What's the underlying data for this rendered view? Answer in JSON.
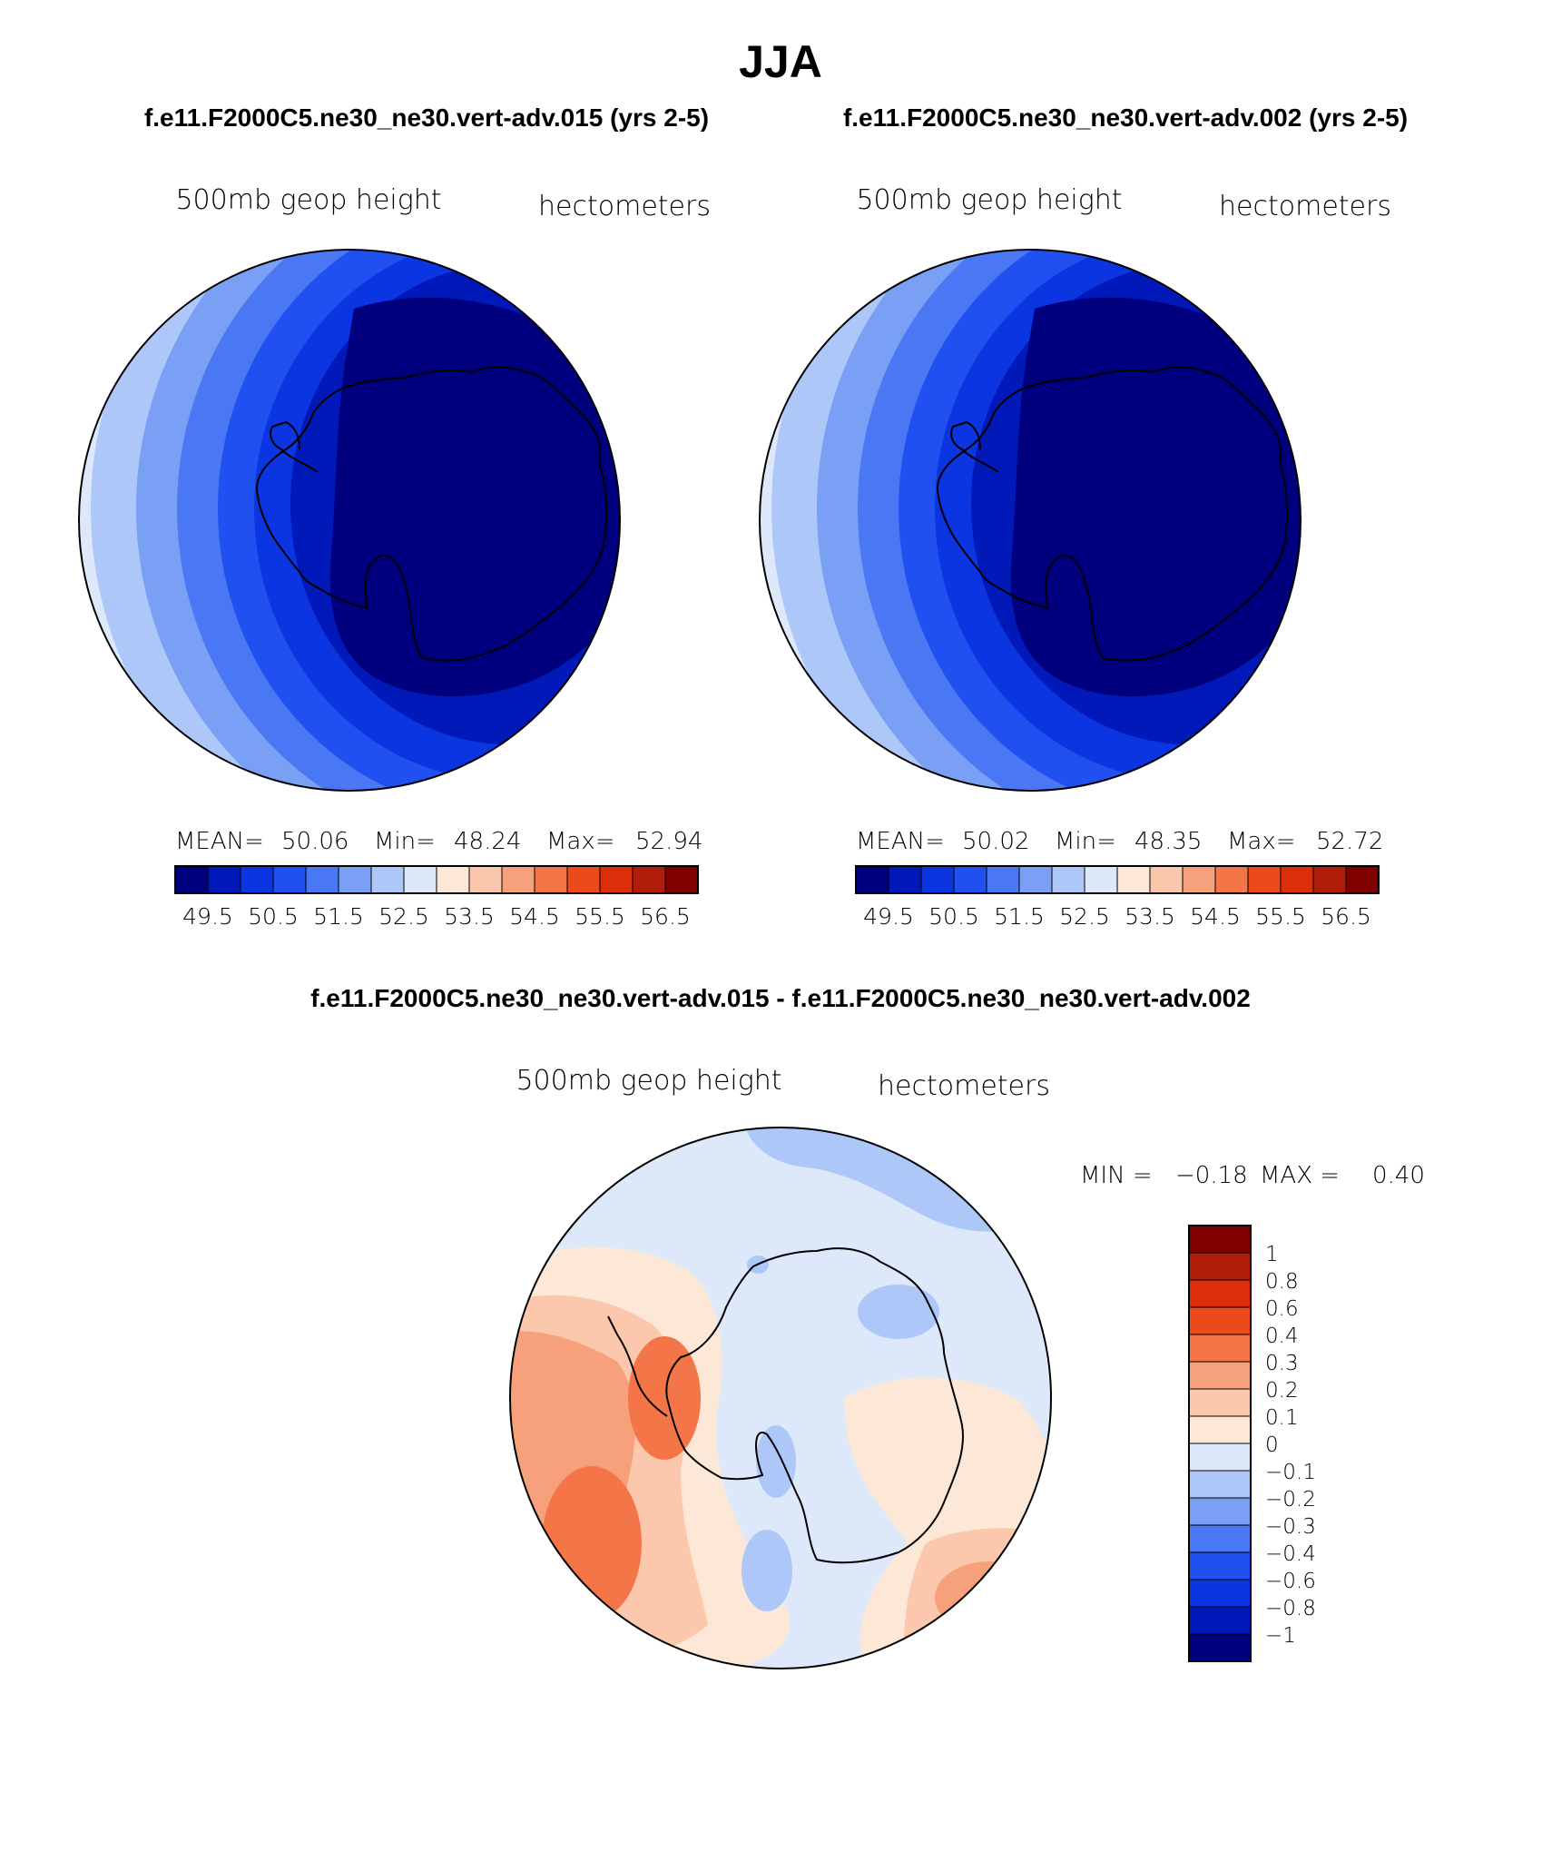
{
  "title": "JJA",
  "panels": [
    {
      "case_title": "f.e11.F2000C5.ne30_ne30.vert-adv.015 (yrs 2-5)",
      "variable": "500mb geop height",
      "units": "hectometers",
      "stats": {
        "mean_label": "MEAN=",
        "mean": "50.06",
        "min_label": "Min=",
        "min": "48.24",
        "max_label": "Max=",
        "max": "52.94"
      }
    },
    {
      "case_title": "f.e11.F2000C5.ne30_ne30.vert-adv.002 (yrs 2-5)",
      "variable": "500mb geop height",
      "units": "hectometers",
      "stats": {
        "mean_label": "MEAN=",
        "mean": "50.02",
        "min_label": "Min=",
        "min": "48.35",
        "max_label": "Max=",
        "max": "52.72"
      }
    }
  ],
  "abs_colorbar": {
    "colors": [
      "#00007f",
      "#0019b8",
      "#0a35e0",
      "#2050f0",
      "#4a78f5",
      "#7aa0f6",
      "#adc8f8",
      "#dde9fb",
      "#fde7d6",
      "#fbc7ad",
      "#f7a07c",
      "#f47548",
      "#ec4a1a",
      "#dd2e0a",
      "#b01e0b",
      "#800000"
    ],
    "labels": [
      "49.5",
      "50.5",
      "51.5",
      "52.5",
      "53.5",
      "54.5",
      "55.5",
      "56.5"
    ]
  },
  "diff_panel": {
    "title": "f.e11.F2000C5.ne30_ne30.vert-adv.015 - f.e11.F2000C5.ne30_ne30.vert-adv.002",
    "variable": "500mb geop height",
    "units": "hectometers",
    "min_label": "MIN =",
    "min": "−0.18",
    "max_label": "MAX =",
    "max": "0.40"
  },
  "diff_colorbar": {
    "colors": [
      "#800000",
      "#b01e0b",
      "#dd2e0a",
      "#ec4a1a",
      "#f47548",
      "#f7a07c",
      "#fbc7ad",
      "#fde7d6",
      "#dde9fb",
      "#adc8f8",
      "#7aa0f6",
      "#4a78f5",
      "#2050f0",
      "#0a35e0",
      "#0019b8",
      "#00007f"
    ],
    "labels": [
      "1",
      "0.8",
      "0.6",
      "0.4",
      "0.3",
      "0.2",
      "0.1",
      "0",
      "−0.1",
      "−0.2",
      "−0.3",
      "−0.4",
      "−0.6",
      "−0.8",
      "−1"
    ]
  }
}
